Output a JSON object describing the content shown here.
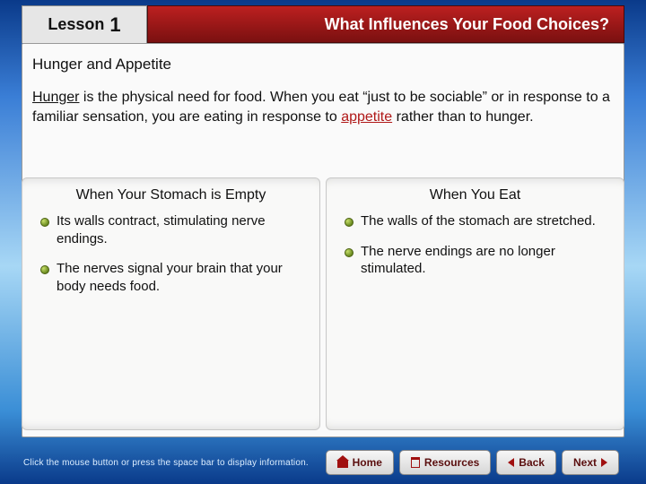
{
  "header": {
    "lesson_label": "Lesson",
    "lesson_number": "1",
    "title": "What Influences Your Food Choices?"
  },
  "subheading": "Hunger and Appetite",
  "paragraph": {
    "term1": "Hunger",
    "mid1": " is the physical need for food. When you eat “just to be sociable” or in response to a familiar sensation, you are eating in response to ",
    "term2": "appetite",
    "mid2": " rather than to hunger."
  },
  "left_panel": {
    "title": "When Your Stomach is Empty",
    "items": [
      "Its walls contract, stimulating nerve endings.",
      "The nerves signal your brain that your body needs food."
    ]
  },
  "right_panel": {
    "title": "When You Eat",
    "items": [
      "The walls of the stomach are stretched.",
      "The nerve endings are no longer stimulated."
    ]
  },
  "footer": {
    "hint": "Click the mouse button or press the space bar to display information.",
    "buttons": {
      "home": "Home",
      "resources": "Resources",
      "back": "Back",
      "next": "Next"
    }
  },
  "colors": {
    "accent_red": "#a01010",
    "link_red": "#b01818"
  }
}
